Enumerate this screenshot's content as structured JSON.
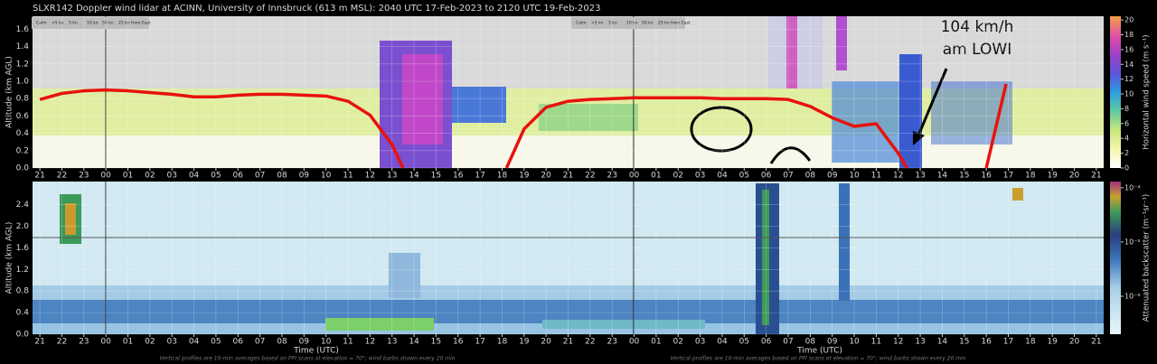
{
  "title": "SLXR142 Doppler wind lidar at ACINN, University of Innsbruck (613 m MSL): 2040 UTC 17-Feb-2023 to 2120 UTC 19-Feb-2023",
  "barb_legend": [
    "Calm",
    "<5 kn",
    "5 kn",
    "10 kn",
    "50 kn",
    "25 kn from East"
  ],
  "chart_data": [
    {
      "type": "heatmap",
      "ylabel": "Altitude (km AGL)",
      "grid": true,
      "xlim": [
        -0.333,
        48.333
      ],
      "ylim": [
        0,
        1.75
      ],
      "yticks": [
        {
          "value": 0,
          "label": "0.0"
        },
        0.2,
        0.4,
        0.6,
        0.8,
        {
          "value": 1,
          "label": "1.0"
        },
        1.2,
        1.4,
        1.6
      ],
      "xticks": [
        {
          "value": 0,
          "label": "21"
        },
        {
          "value": 1,
          "label": "22"
        },
        {
          "value": 2,
          "label": "23"
        },
        {
          "value": 3,
          "label": "00"
        },
        {
          "value": 4,
          "label": "01"
        },
        {
          "value": 5,
          "label": "02"
        },
        {
          "value": 6,
          "label": "03"
        },
        {
          "value": 7,
          "label": "04"
        },
        {
          "value": 8,
          "label": "05"
        },
        {
          "value": 9,
          "label": "06"
        },
        {
          "value": 10,
          "label": "07"
        },
        {
          "value": 11,
          "label": "08"
        },
        {
          "value": 12,
          "label": "09"
        },
        {
          "value": 13,
          "label": "10"
        },
        {
          "value": 14,
          "label": "11"
        },
        {
          "value": 15,
          "label": "12"
        },
        {
          "value": 16,
          "label": "13"
        },
        {
          "value": 17,
          "label": "14"
        },
        {
          "value": 18,
          "label": "15"
        },
        {
          "value": 19,
          "label": "16"
        },
        {
          "value": 20,
          "label": "17"
        },
        {
          "value": 21,
          "label": "18"
        },
        {
          "value": 22,
          "label": "19"
        },
        {
          "value": 23,
          "label": "20"
        },
        {
          "value": 24,
          "label": "21"
        },
        {
          "value": 25,
          "label": "22"
        },
        {
          "value": 26,
          "label": "23"
        },
        {
          "value": 27,
          "label": "00"
        },
        {
          "value": 28,
          "label": "01"
        },
        {
          "value": 29,
          "label": "02"
        },
        {
          "value": 30,
          "label": "03"
        },
        {
          "value": 31,
          "label": "04"
        },
        {
          "value": 32,
          "label": "05"
        },
        {
          "value": 33,
          "label": "06"
        },
        {
          "value": 34,
          "label": "07"
        },
        {
          "value": 35,
          "label": "08"
        },
        {
          "value": 36,
          "label": "09"
        },
        {
          "value": 37,
          "label": "10"
        },
        {
          "value": 38,
          "label": "11"
        },
        {
          "value": 39,
          "label": "12"
        },
        {
          "value": 40,
          "label": "13"
        },
        {
          "value": 41,
          "label": "14"
        },
        {
          "value": 42,
          "label": "15"
        },
        {
          "value": 43,
          "label": "16"
        },
        {
          "value": 44,
          "label": "17"
        },
        {
          "value": 45,
          "label": "18"
        },
        {
          "value": 46,
          "label": "19"
        },
        {
          "value": 47,
          "label": "20"
        },
        {
          "value": 48,
          "label": "21"
        }
      ],
      "colorbar": {
        "label": "Horizontal wind speed (m s⁻¹)",
        "lim": [
          0,
          20.5
        ],
        "ticks": [
          0,
          2,
          4,
          6,
          8,
          10,
          12,
          14,
          16,
          18,
          20
        ],
        "gradient": "wind"
      },
      "overlay": {
        "color": "#e8120c",
        "x": [
          0,
          1,
          2,
          3,
          4,
          5,
          6,
          7,
          8,
          9,
          10,
          11,
          12,
          13,
          14,
          15,
          16,
          16.5,
          18,
          21.2,
          22,
          23,
          24,
          25,
          26,
          27,
          28,
          29,
          30,
          31,
          32,
          33,
          34,
          35,
          36,
          37,
          38,
          39,
          39.4,
          41,
          43,
          43.9
        ],
        "values": [
          0.79,
          0.86,
          0.89,
          0.9,
          0.89,
          0.87,
          0.85,
          0.82,
          0.82,
          0.84,
          0.85,
          0.85,
          0.84,
          0.83,
          0.77,
          0.61,
          0.27,
          0,
          null,
          0,
          0.45,
          0.7,
          0.77,
          0.79,
          0.8,
          0.81,
          0.81,
          0.81,
          0.81,
          0.8,
          0.8,
          0.8,
          0.79,
          0.71,
          0.58,
          0.48,
          0.51,
          0.17,
          0,
          null,
          0,
          0.97
        ]
      },
      "annotations": [
        "104 km/h",
        "am LOWI"
      ]
    },
    {
      "type": "heatmap",
      "ylabel": "Altitude (km AGL)",
      "xlabel": "Time (UTC)",
      "grid": true,
      "xlim": [
        -0.333,
        48.333
      ],
      "ylim": [
        0,
        2.83
      ],
      "yticks": [
        {
          "value": 0,
          "label": "0.0"
        },
        0.4,
        0.8,
        1.2,
        1.6,
        {
          "value": 2,
          "label": "2.0"
        },
        2.4
      ],
      "xticks": [
        {
          "value": 0,
          "label": "21"
        },
        {
          "value": 1,
          "label": "22"
        },
        {
          "value": 2,
          "label": "23"
        },
        {
          "value": 3,
          "label": "00"
        },
        {
          "value": 4,
          "label": "01"
        },
        {
          "value": 5,
          "label": "02"
        },
        {
          "value": 6,
          "label": "03"
        },
        {
          "value": 7,
          "label": "04"
        },
        {
          "value": 8,
          "label": "05"
        },
        {
          "value": 9,
          "label": "06"
        },
        {
          "value": 10,
          "label": "07"
        },
        {
          "value": 11,
          "label": "08"
        },
        {
          "value": 12,
          "label": "09"
        },
        {
          "value": 13,
          "label": "10"
        },
        {
          "value": 14,
          "label": "11"
        },
        {
          "value": 15,
          "label": "12"
        },
        {
          "value": 16,
          "label": "13"
        },
        {
          "value": 17,
          "label": "14"
        },
        {
          "value": 18,
          "label": "15"
        },
        {
          "value": 19,
          "label": "16"
        },
        {
          "value": 20,
          "label": "17"
        },
        {
          "value": 21,
          "label": "18"
        },
        {
          "value": 22,
          "label": "19"
        },
        {
          "value": 23,
          "label": "20"
        },
        {
          "value": 24,
          "label": "21"
        },
        {
          "value": 25,
          "label": "22"
        },
        {
          "value": 26,
          "label": "23"
        },
        {
          "value": 27,
          "label": "00"
        },
        {
          "value": 28,
          "label": "01"
        },
        {
          "value": 29,
          "label": "02"
        },
        {
          "value": 30,
          "label": "03"
        },
        {
          "value": 31,
          "label": "04"
        },
        {
          "value": 32,
          "label": "05"
        },
        {
          "value": 33,
          "label": "06"
        },
        {
          "value": 34,
          "label": "07"
        },
        {
          "value": 35,
          "label": "08"
        },
        {
          "value": 36,
          "label": "09"
        },
        {
          "value": 37,
          "label": "10"
        },
        {
          "value": 38,
          "label": "11"
        },
        {
          "value": 39,
          "label": "12"
        },
        {
          "value": 40,
          "label": "13"
        },
        {
          "value": 41,
          "label": "14"
        },
        {
          "value": 42,
          "label": "15"
        },
        {
          "value": 43,
          "label": "16"
        },
        {
          "value": 44,
          "label": "17"
        },
        {
          "value": 45,
          "label": "18"
        },
        {
          "value": 46,
          "label": "19"
        },
        {
          "value": 47,
          "label": "20"
        },
        {
          "value": 48,
          "label": "21"
        }
      ],
      "colorbar": {
        "label": "Attenuated backscatter (m⁻¹sr⁻¹)",
        "log": true,
        "lim": [
          2e-07,
          0.00013
        ],
        "ticks": [
          {
            "value": 0.0001,
            "label": "10⁻⁴"
          },
          {
            "value": 1e-05,
            "label": "10⁻⁵"
          },
          {
            "value": 1e-06,
            "label": "10⁻⁶"
          }
        ],
        "gradient": "backscatter"
      },
      "note": "Vertical profiles are 10-min averages based on PPI scans at elevation = 70°; wind barbs shown every 20 min"
    }
  ]
}
